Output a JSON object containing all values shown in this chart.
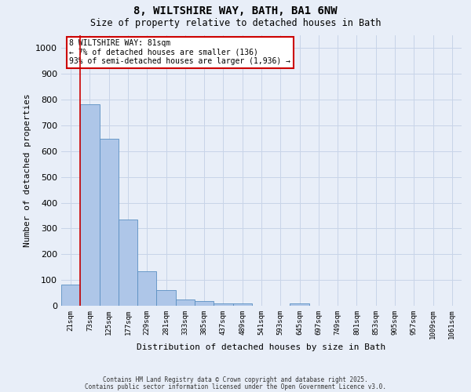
{
  "title1": "8, WILTSHIRE WAY, BATH, BA1 6NW",
  "title2": "Size of property relative to detached houses in Bath",
  "xlabel": "Distribution of detached houses by size in Bath",
  "ylabel": "Number of detached properties",
  "bar_labels": [
    "21sqm",
    "73sqm",
    "125sqm",
    "177sqm",
    "229sqm",
    "281sqm",
    "333sqm",
    "385sqm",
    "437sqm",
    "489sqm",
    "541sqm",
    "593sqm",
    "645sqm",
    "697sqm",
    "749sqm",
    "801sqm",
    "853sqm",
    "905sqm",
    "957sqm",
    "1009sqm",
    "1061sqm"
  ],
  "bar_values": [
    83,
    783,
    648,
    335,
    133,
    60,
    23,
    18,
    8,
    8,
    0,
    0,
    10,
    0,
    0,
    0,
    0,
    0,
    0,
    0,
    0
  ],
  "bar_color": "#aec6e8",
  "bar_edge_color": "#5a8fc2",
  "annotation_text_line1": "8 WILTSHIRE WAY: 81sqm",
  "annotation_text_line2": "← 7% of detached houses are smaller (136)",
  "annotation_text_line3": "93% of semi-detached houses are larger (1,936) →",
  "annotation_box_color": "#ffffff",
  "annotation_box_edge_color": "#cc0000",
  "vline_color": "#cc0000",
  "vline_x_index": 1,
  "ylim": [
    0,
    1050
  ],
  "yticks": [
    0,
    100,
    200,
    300,
    400,
    500,
    600,
    700,
    800,
    900,
    1000
  ],
  "grid_color": "#c8d4e8",
  "bg_color": "#e8eef8",
  "footnote1": "Contains HM Land Registry data © Crown copyright and database right 2025.",
  "footnote2": "Contains public sector information licensed under the Open Government Licence v3.0."
}
